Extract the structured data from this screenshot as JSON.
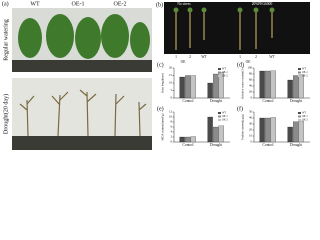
{
  "photo_panels": {
    "a": {
      "label": "(a)",
      "columns": [
        "WT",
        "OE-1",
        "OE-2"
      ],
      "rows": [
        "Regular watering",
        "Drought(20 day)"
      ]
    },
    "b": {
      "label": "(b)",
      "conditions": [
        "No stress",
        "20%PEG6000"
      ],
      "lanes": [
        "1",
        "2",
        "WT",
        "1",
        "2",
        "WT"
      ],
      "group_label": "OE"
    }
  },
  "chart_data": [
    {
      "type": "bar",
      "label": "(c)",
      "ylabel": "Root length(cm)",
      "categories": [
        "Control",
        "Drought"
      ],
      "series": [
        {
          "name": "WT",
          "color": "#4a4a4a",
          "values": [
            14,
            10
          ]
        },
        {
          "name": "OE-1",
          "color": "#8c8c8c",
          "values": [
            15,
            16
          ]
        },
        {
          "name": "OE-2",
          "color": "#c4c4c4",
          "values": [
            15,
            17
          ]
        }
      ],
      "ylim": [
        0,
        20
      ],
      "yticks": [
        0,
        5,
        10,
        15,
        20
      ]
    },
    {
      "type": "bar",
      "label": "(d)",
      "ylabel": "Relative water content(%)",
      "categories": [
        "Control",
        "Drought"
      ],
      "series": [
        {
          "name": "WT",
          "color": "#4a4a4a",
          "values": [
            90,
            60
          ]
        },
        {
          "name": "OE-1",
          "color": "#8c8c8c",
          "values": [
            90,
            75
          ]
        },
        {
          "name": "OE-2",
          "color": "#c4c4c4",
          "values": [
            91,
            78
          ]
        }
      ],
      "ylim": [
        0,
        100
      ],
      "yticks": [
        0,
        20,
        40,
        60,
        80,
        100
      ]
    },
    {
      "type": "bar",
      "label": "(e)",
      "ylabel": "MDA content(nmol/g)",
      "categories": [
        "Control",
        "Drought"
      ],
      "series": [
        {
          "name": "WT",
          "color": "#4a4a4a",
          "values": [
            2,
            10
          ]
        },
        {
          "name": "OE-1",
          "color": "#8c8c8c",
          "values": [
            2,
            6
          ]
        },
        {
          "name": "OE-2",
          "color": "#c4c4c4",
          "values": [
            2.2,
            6.5
          ]
        }
      ],
      "ylim": [
        0,
        12
      ],
      "yticks": [
        0,
        2,
        4,
        6,
        8,
        10,
        12
      ]
    },
    {
      "type": "bar",
      "label": "(f)",
      "ylabel": "Proline content(μg/g)",
      "categories": [
        "Control",
        "Drought"
      ],
      "series": [
        {
          "name": "WT",
          "color": "#4a4a4a",
          "values": [
            40,
            25
          ]
        },
        {
          "name": "OE-1",
          "color": "#8c8c8c",
          "values": [
            40,
            34
          ]
        },
        {
          "name": "OE-2",
          "color": "#c4c4c4",
          "values": [
            41,
            35
          ]
        }
      ],
      "ylim": [
        0,
        50
      ],
      "yticks": [
        0,
        10,
        20,
        30,
        40,
        50
      ]
    }
  ]
}
